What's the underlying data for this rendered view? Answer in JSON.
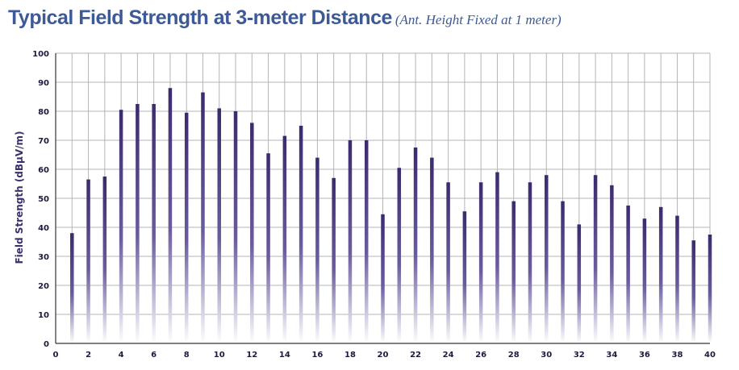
{
  "chart_data": {
    "type": "bar",
    "title": "Typical Field Strength at 3-meter Distance",
    "subtitle": "(Ant. Height Fixed at 1 meter)",
    "xlabel": "",
    "ylabel": "Field Strength (dBµV/m)",
    "xlim": [
      0,
      40
    ],
    "ylim": [
      0,
      100
    ],
    "x_ticks": [
      0,
      2,
      4,
      6,
      8,
      10,
      12,
      14,
      16,
      18,
      20,
      22,
      24,
      26,
      28,
      30,
      32,
      34,
      36,
      38,
      40
    ],
    "y_ticks": [
      0,
      10,
      20,
      30,
      40,
      50,
      60,
      70,
      80,
      90,
      100
    ],
    "grid": true,
    "bar_color": "#3b2a6e",
    "x": [
      1,
      2,
      3,
      4,
      5,
      6,
      7,
      8,
      9,
      10,
      11,
      12,
      13,
      14,
      15,
      16,
      17,
      18,
      19,
      20,
      21,
      22,
      23,
      24,
      25,
      26,
      27,
      28,
      29,
      30,
      31,
      32,
      33,
      34,
      35,
      36,
      37,
      38,
      39,
      40
    ],
    "values": [
      38,
      56.5,
      57.5,
      80.5,
      82.5,
      82.5,
      88,
      79.5,
      86.5,
      81,
      80,
      76,
      65.5,
      71.5,
      75,
      64,
      57,
      70,
      70,
      44.5,
      60.5,
      67.5,
      64,
      55.5,
      45.5,
      55.5,
      59,
      49,
      55.5,
      58,
      49,
      41,
      58,
      54.5,
      47.5,
      43,
      47,
      44,
      35.5,
      37.5
    ]
  }
}
